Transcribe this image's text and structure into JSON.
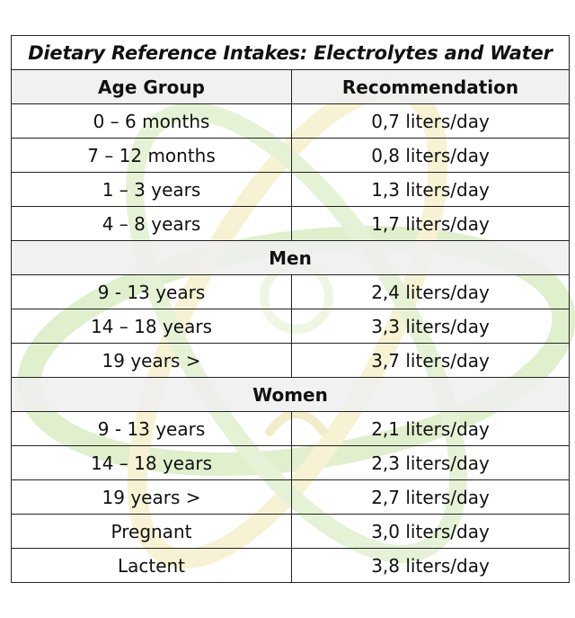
{
  "table": {
    "title": "Dietary Reference Intakes: Electrolytes and Water",
    "headers": [
      "Age Group",
      "Recommendation"
    ],
    "groups": [
      {
        "label": "",
        "rows": [
          [
            "0 – 6 months",
            "0,7 liters/day"
          ],
          [
            "7 – 12 months",
            "0,8 liters/day"
          ],
          [
            "1 – 3 years",
            "1,3 liters/day"
          ],
          [
            "4 – 8 years",
            "1,7 liters/day"
          ]
        ]
      },
      {
        "label": "Men",
        "rows": [
          [
            "9 - 13 years",
            "2,4 liters/day"
          ],
          [
            "14 – 18 years",
            "3,3 liters/day"
          ],
          [
            "19 years >",
            "3,7 liters/day"
          ]
        ]
      },
      {
        "label": "Women",
        "rows": [
          [
            "9 - 13 years",
            "2,1 liters/day"
          ],
          [
            "14 – 18 years",
            "2,3 liters/day"
          ],
          [
            "19 years >",
            "2,7 liters/day"
          ],
          [
            "Pregnant",
            "3,0 liters/day"
          ],
          [
            "Lactent",
            "3,8 liters/day"
          ]
        ]
      }
    ]
  },
  "colors": {
    "watermark_green": "#b7d98f",
    "watermark_yellow": "#eee7a0",
    "header_fill": "#eeeeee",
    "border": "#222222"
  }
}
